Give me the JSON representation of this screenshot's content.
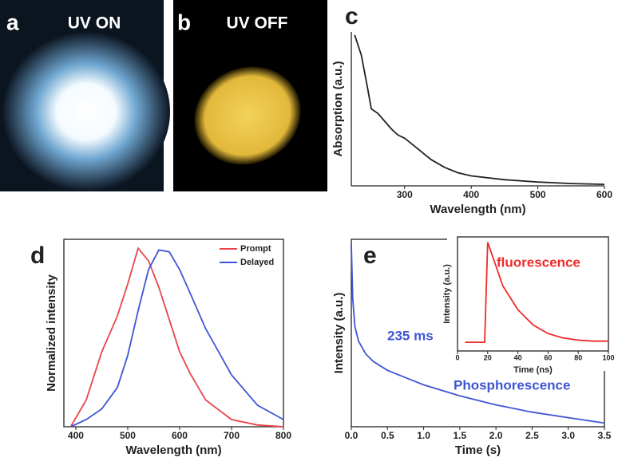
{
  "photos": [
    {
      "panel": "a",
      "caption": "UV ON"
    },
    {
      "panel": "b",
      "caption": "UV OFF"
    }
  ],
  "chart_data": [
    {
      "type": "line",
      "panel": "c",
      "xlabel": "Wavelength (nm)",
      "ylabel": "Absorption (a.u.)",
      "frame": false,
      "x": [
        225,
        235,
        245,
        250,
        260,
        270,
        280,
        290,
        300,
        320,
        340,
        360,
        380,
        400,
        450,
        500,
        550,
        600
      ],
      "series": [
        {
          "color": "#222222",
          "values": [
            0.98,
            0.85,
            0.62,
            0.5,
            0.47,
            0.42,
            0.37,
            0.33,
            0.31,
            0.24,
            0.17,
            0.12,
            0.085,
            0.065,
            0.04,
            0.025,
            0.015,
            0.01
          ]
        }
      ],
      "xlim": [
        220,
        600
      ],
      "ylim": [
        0,
        1
      ],
      "xticks": [
        300,
        400,
        500,
        600
      ]
    },
    {
      "type": "line",
      "panel": "d",
      "xlabel": "Wavelength (nm)",
      "ylabel": "Normalized intensity",
      "frame": true,
      "legend": "top-right",
      "x": [
        390,
        420,
        450,
        480,
        500,
        520,
        540,
        560,
        580,
        600,
        620,
        650,
        700,
        750,
        800
      ],
      "series": [
        {
          "name": "Prompt",
          "color": "#e8444a",
          "values": [
            0,
            0.15,
            0.42,
            0.62,
            0.8,
            1.0,
            0.93,
            0.78,
            0.6,
            0.42,
            0.3,
            0.15,
            0.04,
            0.01,
            0
          ]
        },
        {
          "name": "Delayed",
          "color": "#3f55d4",
          "values": [
            0,
            0.04,
            0.1,
            0.22,
            0.4,
            0.65,
            0.88,
            0.99,
            0.98,
            0.88,
            0.75,
            0.55,
            0.29,
            0.12,
            0.04
          ]
        }
      ],
      "xlim": [
        377,
        800
      ],
      "ylim": [
        0,
        1.05
      ],
      "xticks": [
        400,
        500,
        600,
        700,
        800
      ]
    },
    {
      "type": "line",
      "panel": "e",
      "xlabel": "Time (s)",
      "ylabel": "Intensity (a.u.)",
      "frame": true,
      "annotations": [
        "235 ms",
        "Phosphorescence"
      ],
      "x": [
        0,
        0.02,
        0.05,
        0.1,
        0.2,
        0.3,
        0.5,
        0.75,
        1.0,
        1.5,
        2.0,
        2.5,
        3.0,
        3.5
      ],
      "series": [
        {
          "color": "#3f55d4",
          "values": [
            1.0,
            0.7,
            0.55,
            0.47,
            0.4,
            0.36,
            0.31,
            0.27,
            0.23,
            0.17,
            0.12,
            0.08,
            0.05,
            0.02
          ]
        }
      ],
      "xlim": [
        0,
        3.5
      ],
      "ylim": [
        0,
        1.03
      ],
      "xticks": [
        {
          "value": 0,
          "label": "0.0"
        },
        0.5,
        {
          "value": 1,
          "label": "1.0"
        },
        1.5,
        {
          "value": 2,
          "label": "2.0"
        },
        2.5,
        {
          "value": 3,
          "label": "3.0"
        },
        3.5
      ]
    },
    {
      "type": "line",
      "xlabel": "Time (ns)",
      "ylabel": "Intensity (a.u.)",
      "frame": true,
      "annotations": [
        "fluorescence"
      ],
      "x": [
        5,
        18,
        20,
        25,
        30,
        40,
        50,
        60,
        70,
        80,
        90,
        100
      ],
      "series": [
        {
          "color": "#ee2a2a",
          "values": [
            0.08,
            0.08,
            1.0,
            0.8,
            0.6,
            0.38,
            0.24,
            0.16,
            0.12,
            0.1,
            0.09,
            0.09
          ]
        }
      ],
      "xlim": [
        0,
        100
      ],
      "ylim": [
        0,
        1.05
      ],
      "xticks": [
        0,
        20,
        40,
        60,
        80,
        100
      ]
    }
  ]
}
